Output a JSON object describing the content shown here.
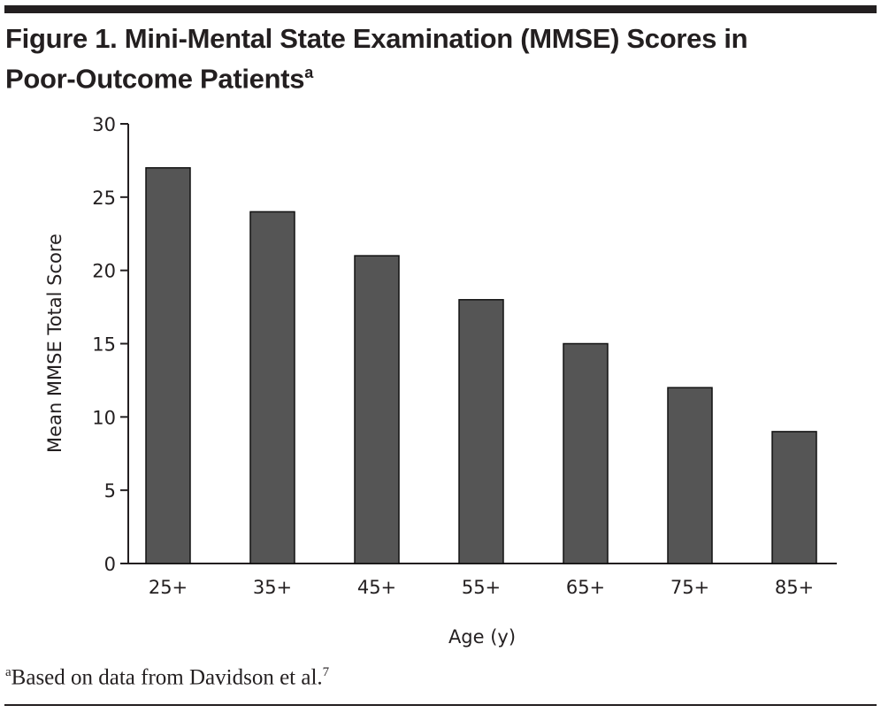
{
  "title": "Figure 1. Mini-Mental State Examination (MMSE) Scores in",
  "title_line2": "Poor-Outcome Patients",
  "title_sup": "a",
  "footnote_sup": "a",
  "footnote": "Based on data from Davidson et al.",
  "footnote_ref": "7",
  "chart_data": {
    "type": "bar",
    "categories": [
      "25+",
      "35+",
      "45+",
      "55+",
      "65+",
      "75+",
      "85+"
    ],
    "values": [
      27,
      24,
      21,
      18,
      15,
      12,
      9
    ],
    "xlabel": "Age (y)",
    "ylabel": "Mean MMSE Total Score",
    "ylim": [
      0,
      30
    ],
    "yticks": [
      "0",
      "5",
      "10",
      "15",
      "20",
      "25",
      "30"
    ],
    "grid": false,
    "bar_color": "#555555"
  }
}
